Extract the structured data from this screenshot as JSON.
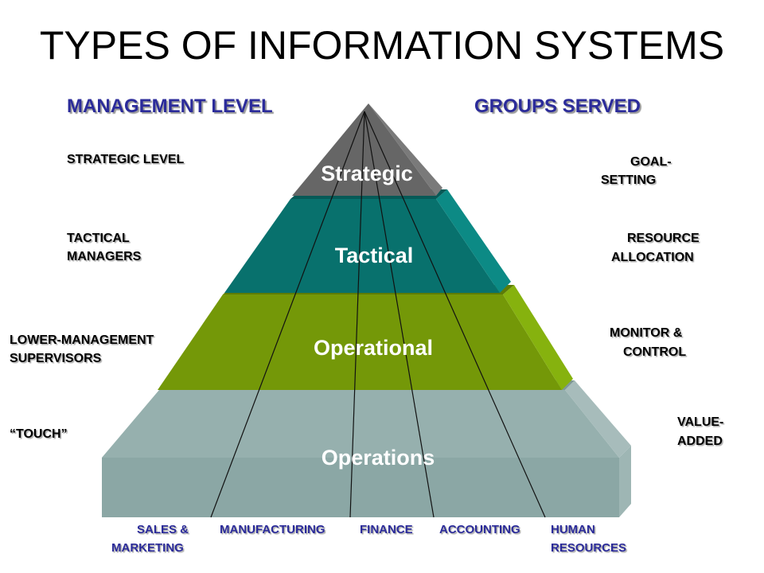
{
  "title": "TYPES OF INFORMATION SYSTEMS",
  "headers": {
    "left": "MANAGEMENT LEVEL",
    "right": "GROUPS SERVED"
  },
  "tiers": [
    "Strategic",
    "Tactical",
    "Operational",
    "Operations"
  ],
  "left_labels": {
    "strategic": "STRATEGIC LEVEL",
    "tactical_1": "TACTICAL",
    "tactical_2": "MANAGERS",
    "lower_1": "LOWER-MANAGEMENT",
    "lower_2": "SUPERVISORS",
    "touch": "“TOUCH”"
  },
  "right_labels": {
    "goal_1": "GOAL-",
    "goal_2": "SETTING",
    "resource_1": "RESOURCE",
    "resource_2": "ALLOCATION",
    "monitor_1": "MONITOR &",
    "monitor_2": "CONTROL",
    "value_1": "VALUE-",
    "value_2": "ADDED"
  },
  "functions": {
    "sales_1": "SALES &",
    "sales_2": "MARKETING",
    "manufacturing": "MANUFACTURING",
    "finance": "FINANCE",
    "accounting": "ACCOUNTING",
    "hr_1": "HUMAN",
    "hr_2": "RESOURCES"
  },
  "colors": {
    "strategic": "#6b6b6b",
    "tactical": "#0a7a76",
    "operational": "#7a9e0a",
    "operations": "#8eaaa8",
    "header_blue": "#2b2b9a"
  }
}
